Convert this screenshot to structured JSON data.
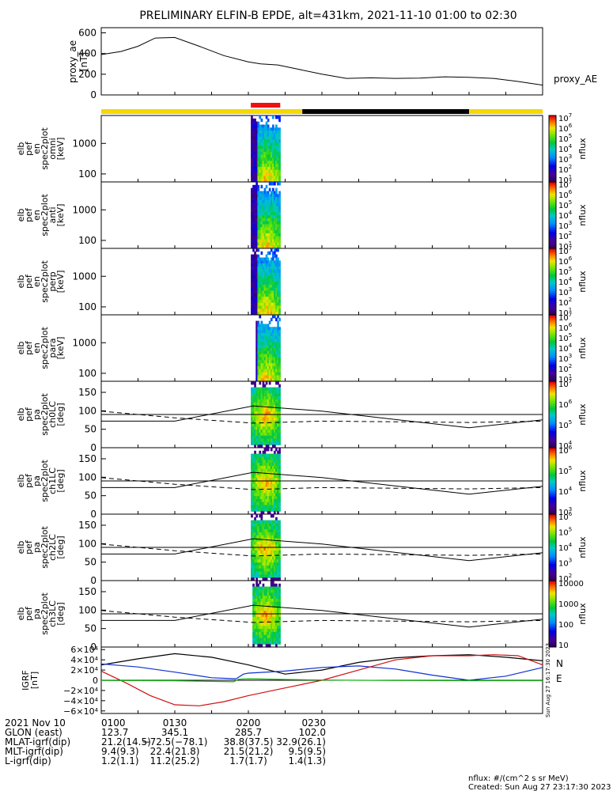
{
  "title": "PRELIMINARY ELFIN-B EPDE, alt=431km, 2021-11-10 01:00 to 02:30",
  "colors": {
    "bar_yellow": "#f5d800",
    "bar_black": "#000000",
    "bar_red": "#ee1111",
    "trace_black": "#000000",
    "trace_blue": "#1030d0",
    "trace_red": "#d01010",
    "trace_green": "#10b010"
  },
  "chart_data": [
    {
      "type": "line",
      "panel": "proxy_ae",
      "ylabel": "proxy_ae [nT]",
      "right_label": "proxy_AE",
      "ylim": [
        0,
        650
      ],
      "yticks": [
        "600",
        "400",
        "200",
        "0"
      ],
      "x_minutes": [
        0,
        8,
        15,
        22,
        30,
        40,
        50,
        60,
        65,
        72,
        80,
        90,
        100,
        110,
        120,
        130,
        140,
        150,
        160,
        170,
        180
      ],
      "values": [
        390,
        420,
        470,
        550,
        555,
        470,
        380,
        320,
        300,
        290,
        250,
        200,
        160,
        165,
        160,
        162,
        175,
        170,
        160,
        130,
        95
      ]
    },
    {
      "type": "heatmap",
      "panel": "state_bar",
      "segments": [
        {
          "from_min": 0,
          "to_min": 82,
          "state": "yellow"
        },
        {
          "from_min": 82,
          "to_min": 150,
          "state": "black"
        },
        {
          "from_min": 150,
          "to_min": 180,
          "state": "yellow"
        }
      ],
      "science_zone": {
        "from_min": 61,
        "to_min": 73
      }
    },
    {
      "type": "heatmap",
      "panel": "omni",
      "ylabel": "elb pef en spec2plot omni [keV]",
      "yscale": "log",
      "yticks": [
        "1000",
        "100"
      ],
      "zlabel": "nflux",
      "ztick_labels": [
        "10^7",
        "10^6",
        "10^5",
        "10^4",
        "10^3",
        "10^2",
        "10^1"
      ],
      "active_interval_min": [
        61,
        73
      ]
    },
    {
      "type": "heatmap",
      "panel": "anti",
      "ylabel": "elb pef en spec2plot anti [keV]",
      "yscale": "log",
      "yticks": [
        "1000",
        "100"
      ],
      "zlabel": "nflux",
      "ztick_labels": [
        "10^7",
        "10^6",
        "10^5",
        "10^4",
        "10^3",
        "10^2",
        "10^1"
      ],
      "active_interval_min": [
        61,
        73
      ]
    },
    {
      "type": "heatmap",
      "panel": "perp",
      "ylabel": "elb pef en spec2plot perp [keV]",
      "yscale": "log",
      "yticks": [
        "1000",
        "100"
      ],
      "zlabel": "nflux",
      "ztick_labels": [
        "10^7",
        "10^6",
        "10^5",
        "10^4",
        "10^3",
        "10^2",
        "10^1"
      ],
      "active_interval_min": [
        61,
        73
      ]
    },
    {
      "type": "heatmap",
      "panel": "para",
      "ylabel": "elb pef en spec2plot para [keV]",
      "yscale": "log",
      "yticks": [
        "1000",
        "100"
      ],
      "zlabel": "nflux",
      "ztick_labels": [
        "10^7",
        "10^6",
        "10^5",
        "10^4",
        "10^3",
        "10^2",
        "10^1"
      ],
      "active_interval_min": [
        61,
        73
      ]
    },
    {
      "type": "heatmap",
      "panel": "ch0LC",
      "ylabel": "elb pef pa spec2plot ch0LC [deg]",
      "yticks": [
        "150",
        "100",
        "50",
        "0"
      ],
      "ylim": [
        0,
        180
      ],
      "zlabel": "nflux",
      "ztick_labels": [
        "10^7",
        "10^6",
        "10^5",
        "10^4"
      ],
      "active_interval_min": [
        61,
        73
      ]
    },
    {
      "type": "heatmap",
      "panel": "ch1LC",
      "ylabel": "elb pef pa spec2plot ch1LC [deg]",
      "yticks": [
        "150",
        "100",
        "50",
        "0"
      ],
      "ylim": [
        0,
        180
      ],
      "zlabel": "nflux",
      "ztick_labels": [
        "10^6",
        "10^5",
        "10^4",
        "10^3"
      ],
      "active_interval_min": [
        61,
        73
      ]
    },
    {
      "type": "heatmap",
      "panel": "ch2LC",
      "ylabel": "elb pef pa spec2plot ch2LC [deg]",
      "yticks": [
        "150",
        "100",
        "50",
        "0"
      ],
      "ylim": [
        0,
        180
      ],
      "zlabel": "nflux",
      "ztick_labels": [
        "10^6",
        "10^5",
        "10^4",
        "10^3",
        "10^2"
      ],
      "active_interval_min": [
        61,
        73
      ]
    },
    {
      "type": "heatmap",
      "panel": "ch3LC",
      "ylabel": "elb pef pa spec2plot ch3LC [deg]",
      "yticks": [
        "150",
        "100",
        "50",
        "0"
      ],
      "ylim": [
        0,
        180
      ],
      "zlabel": "nflux",
      "ztick_labels": [
        "10000",
        "1000",
        "100",
        "10"
      ],
      "active_interval_min": [
        61,
        73
      ]
    },
    {
      "type": "line",
      "panel": "igrf",
      "ylabel": "IGRF [nT]",
      "ylim": [
        -65000,
        65000
      ],
      "yticks": [
        "6×10⁴",
        "4×10⁴",
        "2×10⁴",
        "0",
        "−2×10⁴",
        "−4×10⁴",
        "−6×10⁴"
      ],
      "legend": [
        "N",
        "E"
      ],
      "series": [
        {
          "name": "",
          "color_key": "trace_black",
          "x": [
            0,
            15,
            30,
            45,
            60,
            75,
            90,
            105,
            120,
            135,
            150,
            165,
            180
          ],
          "y": [
            30000,
            42000,
            52000,
            45000,
            30000,
            12000,
            20000,
            35000,
            44000,
            48000,
            50000,
            45000,
            38000
          ]
        },
        {
          "name": "N",
          "color_key": "trace_blue",
          "x": [
            0,
            15,
            30,
            45,
            55,
            58,
            60,
            75,
            90,
            105,
            120,
            135,
            150,
            165,
            180
          ],
          "y": [
            32000,
            26000,
            16000,
            5000,
            3000,
            12000,
            14000,
            18000,
            25000,
            28000,
            22000,
            10000,
            0,
            8000,
            25000
          ]
        },
        {
          "name": "",
          "color_key": "trace_red",
          "x": [
            0,
            10,
            20,
            30,
            40,
            50,
            60,
            75,
            90,
            105,
            120,
            135,
            150,
            160,
            170,
            180
          ],
          "y": [
            18000,
            -5000,
            -30000,
            -48000,
            -50000,
            -42000,
            -30000,
            -15000,
            0,
            20000,
            40000,
            48000,
            48000,
            50000,
            48000,
            30000
          ]
        },
        {
          "name": "E",
          "color_key": "trace_green",
          "x": [
            0,
            30,
            54,
            56,
            60,
            75,
            90,
            105,
            120,
            150,
            180
          ],
          "y": [
            -500,
            -1000,
            -3000,
            2000,
            3000,
            1500,
            500,
            0,
            -500,
            -800,
            -700
          ]
        }
      ]
    }
  ],
  "cbar_label": "nflux",
  "side_stamp": "Sun Aug 27 16:17:30 2023",
  "footer": {
    "rows": [
      {
        "label": "2021 Nov 10",
        "values": [
          "0100",
          "0130",
          "0200",
          "0230"
        ]
      },
      {
        "label": "GLON (east)",
        "values": [
          "123.7",
          "345.1",
          "285.7",
          "102.0"
        ]
      },
      {
        "label": "MLAT-igrf(dip)",
        "values": [
          "21.2(14.5)",
          "−72.5(−78.1)",
          "38.8(37.5)",
          "32.9(26.1)"
        ]
      },
      {
        "label": "MLT-igrf(dip)",
        "values": [
          "9.4(9.3)",
          "22.4(21.8)",
          "21.5(21.2)",
          "9.5(9.5)"
        ]
      },
      {
        "label": "L-igrf(dip)",
        "values": [
          "1.2(1.1)",
          "11.2(25.2)",
          "1.7(1.7)",
          "1.4(1.3)"
        ]
      }
    ],
    "units_note": "nflux: #/(cm^2 s sr MeV)",
    "created": "Created: Sun Aug 27 23:17:30 2023"
  }
}
